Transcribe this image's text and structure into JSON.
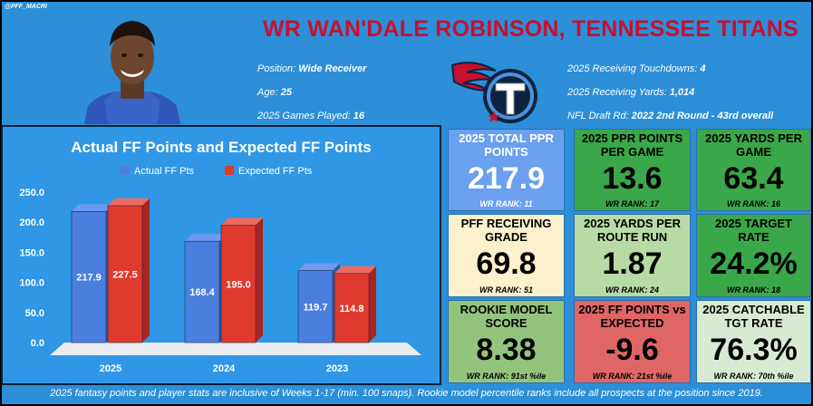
{
  "watermark": "@PFF_MACRI",
  "title": "WR WAN'DALE ROBINSON, TENNESSEE TITANS",
  "info_left": [
    {
      "label": "Position:",
      "value": "Wide Receiver"
    },
    {
      "label": "Age:",
      "value": "25"
    },
    {
      "label": "2025 Games Played:",
      "value": "16"
    }
  ],
  "info_right": [
    {
      "label": "2025 Receiving Touchdowns:",
      "value": "4"
    },
    {
      "label": "2025 Receiving Yards:",
      "value": "1,014"
    },
    {
      "label": "NFL Draft Rd:",
      "value": "2022 2nd Round - 43rd overall"
    }
  ],
  "colors": {
    "background": "#2c8fd8",
    "title": "#c8102e",
    "actual": "#4a7fe0",
    "expected": "#e03a2e",
    "tile_blue": "#6aa0ee",
    "tile_green": "#3aa84a",
    "tile_cream": "#fcf1cc",
    "tile_lightgreen": "#b7dba4",
    "tile_olive": "#93c47d",
    "tile_red": "#e06666",
    "tile_pale": "#d9ead3"
  },
  "chart_data": {
    "type": "bar",
    "title": "Actual FF Points and Expected FF Points",
    "categories": [
      "2025",
      "2024",
      "2023"
    ],
    "series": [
      {
        "name": "Actual FF Pts",
        "values": [
          217.9,
          168.4,
          119.7
        ]
      },
      {
        "name": "Expected FF Pts",
        "values": [
          227.5,
          195.0,
          114.8
        ]
      }
    ],
    "y_ticks": [
      "250.0",
      "200.0",
      "150.0",
      "100.0",
      "50.0",
      "0.0"
    ],
    "ylim": [
      0,
      250
    ],
    "legend_position": "top",
    "xlabel": "",
    "ylabel": ""
  },
  "tiles": [
    {
      "label": "2025 TOTAL PPR POINTS",
      "value": "217.9",
      "rank": "WR RANK: 11",
      "color": "#6aa0ee",
      "light": true
    },
    {
      "label": "2025 PPR POINTS PER GAME",
      "value": "13.6",
      "rank": "WR RANK: 17",
      "color": "#3aa84a",
      "light": false
    },
    {
      "label": "2025 YARDS PER GAME",
      "value": "63.4",
      "rank": "WR RANK: 16",
      "color": "#3aa84a",
      "light": false
    },
    {
      "label": "PFF RECEIVING GRADE",
      "value": "69.8",
      "rank": "WR RANK: 51",
      "color": "#fcf1cc",
      "light": false
    },
    {
      "label": "2025 YARDS PER ROUTE RUN",
      "value": "1.87",
      "rank": "WR RANK: 24",
      "color": "#b7dba4",
      "light": false
    },
    {
      "label": "2025 TARGET RATE",
      "value": "24.2%",
      "rank": "WR RANK: 18",
      "color": "#3aa84a",
      "light": false
    },
    {
      "label": "ROOKIE MODEL SCORE",
      "value": "8.38",
      "rank": "WR RANK: 91st %ile",
      "color": "#93c47d",
      "light": false
    },
    {
      "label": "2025 FF POINTS vs EXPECTED",
      "value": "-9.6",
      "rank": "WR RANK: 21st %ile",
      "color": "#e06666",
      "light": false
    },
    {
      "label": "2025 CATCHABLE TGT RATE",
      "value": "76.3%",
      "rank": "WR RANK: 70th %ile",
      "color": "#d9ead3",
      "light": false
    }
  ],
  "footer": "2025 fantasy points and player stats are inclusive of Weeks 1-17 (min. 100 snaps). Rookie model percentile ranks include all prospects at the position since 2019."
}
